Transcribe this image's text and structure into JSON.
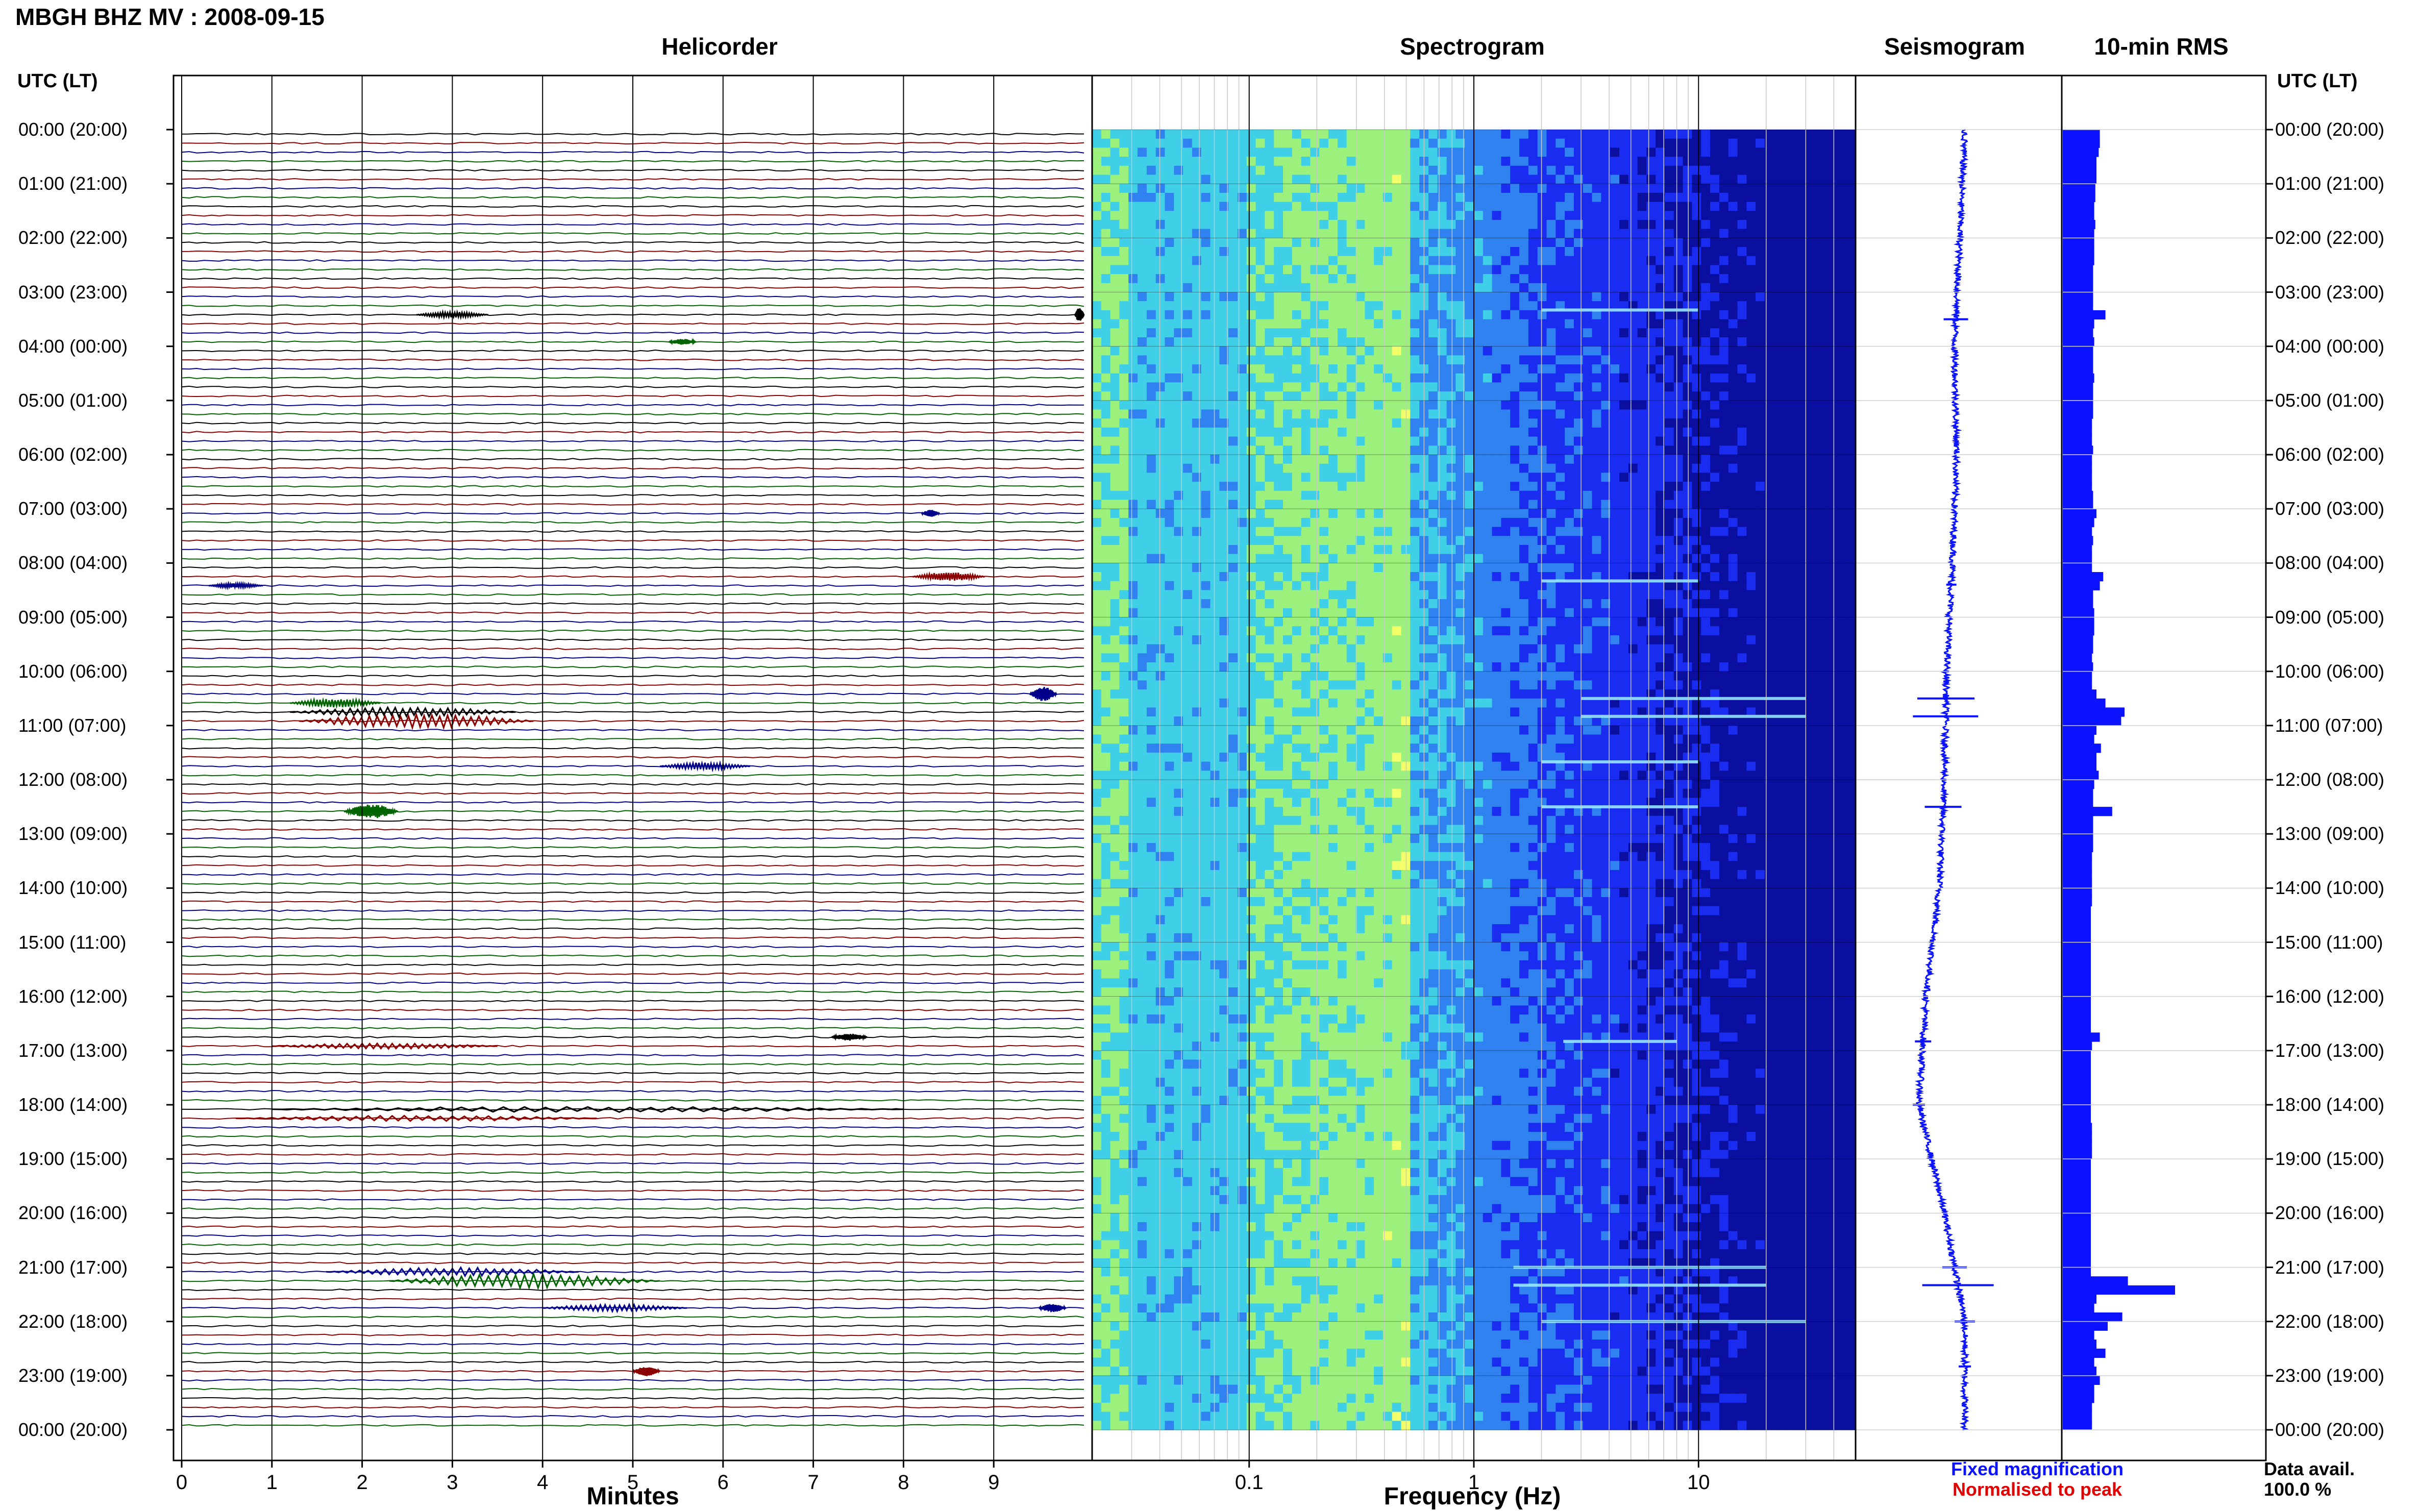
{
  "header": {
    "station": "MBGH BHZ MV : 2008-09-15",
    "panels": [
      "Helicorder",
      "Spectrogram",
      "Seismogram",
      "10-min RMS"
    ],
    "utc_label_left": "UTC (LT)",
    "utc_label_right": "UTC (LT)"
  },
  "time_labels": [
    "00:00 (20:00)",
    "01:00 (21:00)",
    "02:00 (22:00)",
    "03:00 (23:00)",
    "04:00 (00:00)",
    "05:00 (01:00)",
    "06:00 (02:00)",
    "07:00 (03:00)",
    "08:00 (04:00)",
    "09:00 (05:00)",
    "10:00 (06:00)",
    "11:00 (07:00)",
    "12:00 (08:00)",
    "13:00 (09:00)",
    "14:00 (10:00)",
    "15:00 (11:00)",
    "16:00 (12:00)",
    "17:00 (13:00)",
    "18:00 (14:00)",
    "19:00 (15:00)",
    "20:00 (16:00)",
    "21:00 (17:00)",
    "22:00 (18:00)",
    "23:00 (19:00)",
    "00:00 (20:00)"
  ],
  "footer": {
    "minutes_title": "Minutes",
    "frequency_title": "Frequency (Hz)",
    "legend_fixed": "Fixed magnification",
    "legend_normalised": "Normalised to peak",
    "avail_title": "Data avail.",
    "avail_value": "100.0 %"
  },
  "colors": {
    "helicorder_traces": [
      "#000000",
      "#8b0000",
      "#00008b",
      "#006400"
    ],
    "fixed_magnification": "#0a12ff",
    "normalised_to_peak": "#e00000",
    "rms_bar": "#0a12ff"
  },
  "chart_data": [
    {
      "type": "line",
      "title": "Helicorder",
      "xlabel": "Minutes",
      "x_ticks": [
        "0",
        "1",
        "2",
        "3",
        "4",
        "5",
        "6",
        "7",
        "8",
        "9"
      ],
      "xlim": [
        0,
        10
      ],
      "ylim_hours_utc": [
        0,
        24
      ],
      "trace_interval_minutes": 10,
      "events": [
        {
          "hour": 3.33,
          "minute": 2.6,
          "duration": 0.8,
          "amp": 0.4
        },
        {
          "hour": 3.33,
          "minute": 9.9,
          "duration": 0.1,
          "amp": 1.0
        },
        {
          "hour": 3.83,
          "minute": 5.4,
          "duration": 0.3,
          "amp": 0.4
        },
        {
          "hour": 7.0,
          "minute": 8.2,
          "duration": 0.2,
          "amp": 0.5
        },
        {
          "hour": 8.17,
          "minute": 8.1,
          "duration": 0.8,
          "amp": 0.6
        },
        {
          "hour": 8.33,
          "minute": 0.3,
          "duration": 0.6,
          "amp": 0.3
        },
        {
          "hour": 10.33,
          "minute": 9.4,
          "duration": 0.3,
          "amp": 1.0
        },
        {
          "hour": 10.5,
          "minute": 1.2,
          "duration": 1.0,
          "amp": 0.6
        },
        {
          "hour": 10.67,
          "minute": 1.2,
          "duration": 2.5,
          "amp": 0.7
        },
        {
          "hour": 10.83,
          "minute": 1.3,
          "duration": 2.6,
          "amp": 1.0
        },
        {
          "hour": 11.67,
          "minute": 5.3,
          "duration": 1.0,
          "amp": 0.5
        },
        {
          "hour": 12.5,
          "minute": 1.8,
          "duration": 0.6,
          "amp": 1.0
        },
        {
          "hour": 16.67,
          "minute": 7.2,
          "duration": 0.4,
          "amp": 0.5
        },
        {
          "hour": 16.83,
          "minute": 1.0,
          "duration": 2.5,
          "amp": 0.4
        },
        {
          "hour": 18.0,
          "minute": 1.0,
          "duration": 7.0,
          "amp": 0.4
        },
        {
          "hour": 18.17,
          "minute": 0.6,
          "duration": 4.0,
          "amp": 0.4
        },
        {
          "hour": 21.0,
          "minute": 1.6,
          "duration": 2.8,
          "amp": 0.6
        },
        {
          "hour": 21.17,
          "minute": 2.3,
          "duration": 3.0,
          "amp": 1.0
        },
        {
          "hour": 21.67,
          "minute": 4.0,
          "duration": 1.6,
          "amp": 0.5
        },
        {
          "hour": 21.67,
          "minute": 9.5,
          "duration": 0.3,
          "amp": 0.6
        },
        {
          "hour": 22.83,
          "minute": 5.0,
          "duration": 0.3,
          "amp": 0.7
        }
      ]
    },
    {
      "type": "heatmap",
      "title": "Spectrogram",
      "xlabel": "Frequency (Hz)",
      "x_scale": "log",
      "xlim": [
        0.02,
        50
      ],
      "x_ticks": [
        "0.1",
        "1",
        "10"
      ],
      "ylim_hours_utc": [
        0,
        24
      ],
      "colormap": [
        "#f0ff6a",
        "#9cf07c",
        "#3fd0e8",
        "#2f82f0",
        "#1a2cf0",
        "#0a0fa0"
      ],
      "bright_lines": [
        {
          "hour": 3.33,
          "fmin": 2.0,
          "fmax": 10.0
        },
        {
          "hour": 8.33,
          "fmin": 2.0,
          "fmax": 10.0
        },
        {
          "hour": 10.5,
          "fmin": 3.0,
          "fmax": 30.0
        },
        {
          "hour": 10.83,
          "fmin": 3.0,
          "fmax": 30.0
        },
        {
          "hour": 11.67,
          "fmin": 2.0,
          "fmax": 10.0
        },
        {
          "hour": 12.5,
          "fmin": 2.0,
          "fmax": 10.0
        },
        {
          "hour": 16.83,
          "fmin": 2.5,
          "fmax": 8.0
        },
        {
          "hour": 21.0,
          "fmin": 1.5,
          "fmax": 20.0
        },
        {
          "hour": 21.33,
          "fmin": 1.5,
          "fmax": 20.0
        },
        {
          "hour": 22.0,
          "fmin": 2.0,
          "fmax": 30.0
        }
      ]
    },
    {
      "type": "line",
      "title": "Seismogram",
      "ylim_hours_utc": [
        0,
        24
      ],
      "drift": [
        [
          0,
          0.0
        ],
        [
          2,
          -0.05
        ],
        [
          4,
          -0.1
        ],
        [
          6,
          -0.08
        ],
        [
          8,
          -0.12
        ],
        [
          10,
          -0.18
        ],
        [
          12,
          -0.2
        ],
        [
          14,
          -0.25
        ],
        [
          16,
          -0.38
        ],
        [
          18,
          -0.45
        ],
        [
          20,
          -0.2
        ],
        [
          21,
          -0.1
        ],
        [
          22,
          0.0
        ],
        [
          24,
          0.0
        ]
      ],
      "spikes": [
        [
          3.5,
          0.12
        ],
        [
          8.4,
          0.05
        ],
        [
          10.5,
          0.28
        ],
        [
          10.83,
          0.32
        ],
        [
          12.5,
          0.18
        ],
        [
          16.83,
          0.08
        ],
        [
          18.0,
          0.06
        ],
        [
          21.0,
          0.12
        ],
        [
          21.33,
          0.35
        ],
        [
          22.0,
          0.1
        ],
        [
          22.83,
          0.06
        ]
      ]
    },
    {
      "type": "bar",
      "title": "10-min RMS",
      "ylim_hours_utc": [
        0,
        24
      ],
      "bin_minutes": 10,
      "values_relative": [
        0.33,
        0.33,
        0.32,
        0.3,
        0.3,
        0.3,
        0.29,
        0.29,
        0.28,
        0.28,
        0.29,
        0.28,
        0.28,
        0.28,
        0.28,
        0.27,
        0.27,
        0.27,
        0.27,
        0.27,
        0.38,
        0.28,
        0.27,
        0.28,
        0.27,
        0.27,
        0.27,
        0.28,
        0.27,
        0.27,
        0.27,
        0.27,
        0.26,
        0.26,
        0.26,
        0.27,
        0.26,
        0.26,
        0.26,
        0.26,
        0.27,
        0.27,
        0.3,
        0.28,
        0.26,
        0.27,
        0.26,
        0.26,
        0.26,
        0.36,
        0.33,
        0.27,
        0.27,
        0.28,
        0.28,
        0.28,
        0.27,
        0.27,
        0.26,
        0.27,
        0.26,
        0.26,
        0.3,
        0.38,
        0.55,
        0.52,
        0.3,
        0.28,
        0.34,
        0.3,
        0.3,
        0.32,
        0.28,
        0.27,
        0.27,
        0.44,
        0.27,
        0.27,
        0.27,
        0.27,
        0.26,
        0.26,
        0.26,
        0.26,
        0.26,
        0.26,
        0.25,
        0.25,
        0.25,
        0.25,
        0.25,
        0.25,
        0.25,
        0.25,
        0.25,
        0.25,
        0.25,
        0.25,
        0.25,
        0.25,
        0.33,
        0.26,
        0.25,
        0.25,
        0.25,
        0.25,
        0.25,
        0.25,
        0.25,
        0.25,
        0.26,
        0.26,
        0.26,
        0.26,
        0.25,
        0.25,
        0.25,
        0.25,
        0.25,
        0.25,
        0.25,
        0.25,
        0.25,
        0.25,
        0.25,
        0.25,
        0.25,
        0.58,
        1.0,
        0.3,
        0.28,
        0.53,
        0.4,
        0.28,
        0.3,
        0.38,
        0.28,
        0.3,
        0.33,
        0.28,
        0.28,
        0.26,
        0.26,
        0.26
      ]
    }
  ]
}
